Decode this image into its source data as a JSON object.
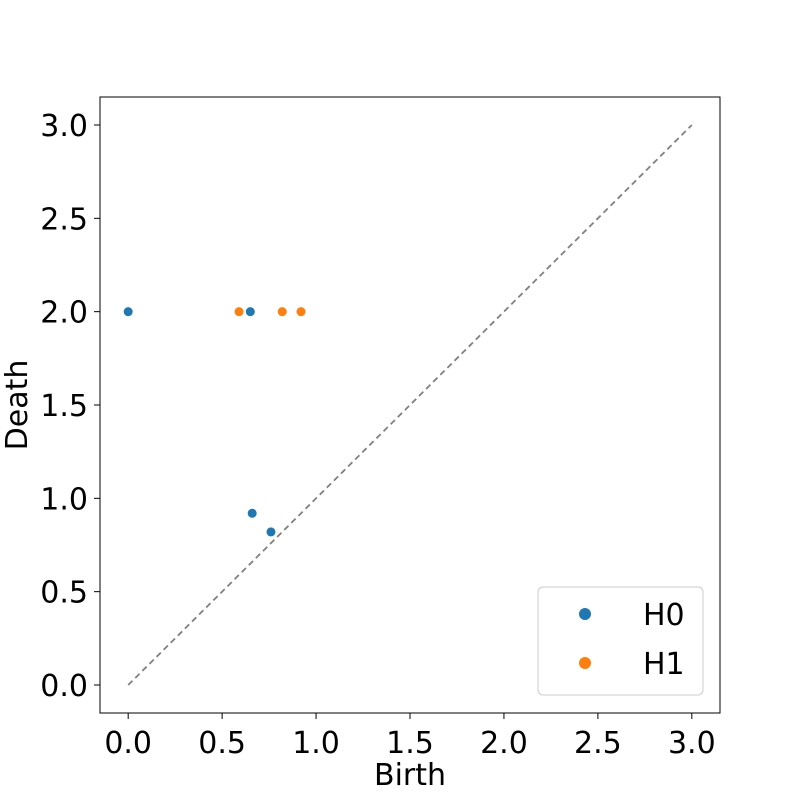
{
  "chart_data": {
    "type": "scatter",
    "title": "",
    "xlabel": "Birth",
    "ylabel": "Death",
    "xlim": [
      -0.15,
      3.15
    ],
    "ylim": [
      -0.15,
      3.15
    ],
    "x_ticks": [
      0.0,
      0.5,
      1.0,
      1.5,
      2.0,
      2.5,
      3.0
    ],
    "y_ticks": [
      0.0,
      0.5,
      1.0,
      1.5,
      2.0,
      2.5,
      3.0
    ],
    "tick_labels_x": [
      "0.0",
      "0.5",
      "1.0",
      "1.5",
      "2.0",
      "2.5",
      "3.0"
    ],
    "tick_labels_y": [
      "0.0",
      "0.5",
      "1.0",
      "1.5",
      "2.0",
      "2.5",
      "3.0"
    ],
    "grid": false,
    "legend_position": "bottom-right",
    "diagonal": {
      "from": [
        0,
        0
      ],
      "to": [
        3,
        3
      ],
      "color": "#808080",
      "style": "dashed"
    },
    "series": [
      {
        "name": "H0",
        "color": "#1f77b4",
        "points": [
          {
            "x": 0.0,
            "y": 2.0
          },
          {
            "x": 0.65,
            "y": 2.0
          },
          {
            "x": 0.66,
            "y": 0.92
          },
          {
            "x": 0.76,
            "y": 0.82
          }
        ]
      },
      {
        "name": "H1",
        "color": "#ff7f0e",
        "points": [
          {
            "x": 0.59,
            "y": 2.0
          },
          {
            "x": 0.82,
            "y": 2.0
          },
          {
            "x": 0.92,
            "y": 2.0
          }
        ]
      }
    ]
  }
}
